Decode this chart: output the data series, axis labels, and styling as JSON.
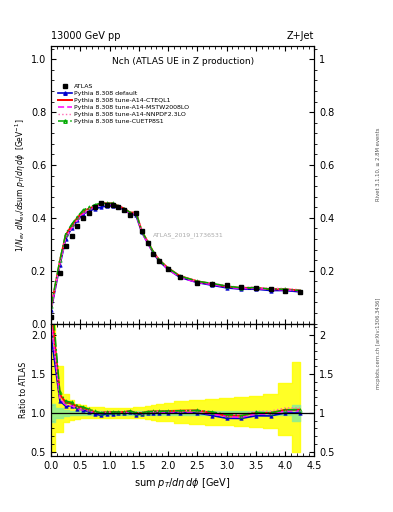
{
  "title_left": "13000 GeV pp",
  "title_right": "Z+Jet",
  "plot_title": "Nch (ATLAS UE in Z production)",
  "xlabel": "sum p$_T$/dη dφ [GeV]",
  "ylabel_main": "1/N$_{ev}$ dN$_{ev}$/dsum p$_T$/dη dφ  [GeV$^{-1}$]",
  "ylabel_ratio": "Ratio to ATLAS",
  "watermark": "ATLAS_2019_I1736531",
  "rivet_text": "Rivet 3.1.10, ≥ 2.8M events",
  "inspire_text": "mcplots.cern.ch [arXiv:1306.3436]",
  "xlim": [
    0.0,
    4.5
  ],
  "ylim_main": [
    0.0,
    1.05
  ],
  "ylim_ratio": [
    0.45,
    2.15
  ],
  "atlas_x": [
    0.0,
    0.15,
    0.25,
    0.35,
    0.45,
    0.55,
    0.65,
    0.75,
    0.85,
    0.95,
    1.05,
    1.15,
    1.25,
    1.35,
    1.45,
    1.55,
    1.65,
    1.75,
    1.85,
    2.0,
    2.2,
    2.5,
    2.75,
    3.0,
    3.25,
    3.5,
    3.75,
    4.0,
    4.25
  ],
  "atlas_y": [
    0.025,
    0.19,
    0.295,
    0.33,
    0.37,
    0.4,
    0.42,
    0.44,
    0.455,
    0.45,
    0.45,
    0.44,
    0.43,
    0.41,
    0.42,
    0.35,
    0.305,
    0.265,
    0.235,
    0.205,
    0.175,
    0.155,
    0.15,
    0.145,
    0.14,
    0.135,
    0.13,
    0.125,
    0.12
  ],
  "atlas_yerr": [
    0.004,
    0.005,
    0.005,
    0.005,
    0.005,
    0.005,
    0.005,
    0.005,
    0.005,
    0.005,
    0.005,
    0.005,
    0.005,
    0.005,
    0.005,
    0.005,
    0.005,
    0.005,
    0.004,
    0.004,
    0.004,
    0.004,
    0.004,
    0.004,
    0.004,
    0.004,
    0.004,
    0.004,
    0.004
  ],
  "default_x": [
    0.0,
    0.15,
    0.25,
    0.35,
    0.45,
    0.55,
    0.65,
    0.75,
    0.85,
    0.95,
    1.05,
    1.15,
    1.25,
    1.35,
    1.45,
    1.55,
    1.65,
    1.75,
    1.85,
    2.0,
    2.2,
    2.5,
    2.75,
    3.0,
    3.25,
    3.5,
    3.75,
    4.0,
    4.25
  ],
  "default_y": [
    0.05,
    0.22,
    0.32,
    0.36,
    0.39,
    0.415,
    0.425,
    0.435,
    0.44,
    0.445,
    0.445,
    0.44,
    0.43,
    0.415,
    0.41,
    0.345,
    0.305,
    0.265,
    0.235,
    0.205,
    0.175,
    0.155,
    0.145,
    0.135,
    0.13,
    0.13,
    0.125,
    0.125,
    0.12
  ],
  "cteql1_x": [
    0.0,
    0.15,
    0.25,
    0.35,
    0.45,
    0.55,
    0.65,
    0.75,
    0.85,
    0.95,
    1.05,
    1.15,
    1.25,
    1.35,
    1.45,
    1.55,
    1.65,
    1.75,
    1.85,
    2.0,
    2.2,
    2.5,
    2.75,
    3.0,
    3.25,
    3.5,
    3.75,
    4.0,
    4.25
  ],
  "cteql1_y": [
    0.06,
    0.235,
    0.335,
    0.37,
    0.4,
    0.425,
    0.435,
    0.445,
    0.455,
    0.455,
    0.455,
    0.445,
    0.435,
    0.42,
    0.42,
    0.35,
    0.31,
    0.27,
    0.24,
    0.21,
    0.18,
    0.16,
    0.15,
    0.14,
    0.135,
    0.135,
    0.13,
    0.13,
    0.125
  ],
  "mstw_x": [
    0.0,
    0.15,
    0.25,
    0.35,
    0.45,
    0.55,
    0.65,
    0.75,
    0.85,
    0.95,
    1.05,
    1.15,
    1.25,
    1.35,
    1.45,
    1.55,
    1.65,
    1.75,
    1.85,
    2.0,
    2.2,
    2.5,
    2.75,
    3.0,
    3.25,
    3.5,
    3.75,
    4.0,
    4.25
  ],
  "mstw_y": [
    0.055,
    0.225,
    0.325,
    0.36,
    0.39,
    0.415,
    0.43,
    0.44,
    0.45,
    0.45,
    0.45,
    0.44,
    0.43,
    0.415,
    0.415,
    0.345,
    0.305,
    0.265,
    0.235,
    0.205,
    0.175,
    0.155,
    0.148,
    0.138,
    0.132,
    0.133,
    0.128,
    0.128,
    0.123
  ],
  "nnpdf_x": [
    0.0,
    0.15,
    0.25,
    0.35,
    0.45,
    0.55,
    0.65,
    0.75,
    0.85,
    0.95,
    1.05,
    1.15,
    1.25,
    1.35,
    1.45,
    1.55,
    1.65,
    1.75,
    1.85,
    2.0,
    2.2,
    2.5,
    2.75,
    3.0,
    3.25,
    3.5,
    3.75,
    4.0,
    4.25
  ],
  "nnpdf_y": [
    0.055,
    0.225,
    0.325,
    0.36,
    0.395,
    0.42,
    0.435,
    0.445,
    0.455,
    0.455,
    0.455,
    0.445,
    0.435,
    0.42,
    0.42,
    0.35,
    0.31,
    0.27,
    0.24,
    0.21,
    0.18,
    0.16,
    0.153,
    0.143,
    0.137,
    0.138,
    0.133,
    0.133,
    0.128
  ],
  "cuetp_x": [
    0.0,
    0.15,
    0.25,
    0.35,
    0.45,
    0.55,
    0.65,
    0.75,
    0.85,
    0.95,
    1.05,
    1.15,
    1.25,
    1.35,
    1.45,
    1.55,
    1.65,
    1.75,
    1.85,
    2.0,
    2.2,
    2.5,
    2.75,
    3.0,
    3.25,
    3.5,
    3.75,
    4.0,
    4.25
  ],
  "cuetp_y": [
    0.065,
    0.24,
    0.34,
    0.375,
    0.405,
    0.43,
    0.44,
    0.45,
    0.455,
    0.455,
    0.455,
    0.445,
    0.435,
    0.42,
    0.42,
    0.35,
    0.31,
    0.27,
    0.24,
    0.21,
    0.18,
    0.16,
    0.152,
    0.142,
    0.135,
    0.136,
    0.13,
    0.13,
    0.125
  ],
  "green_band_lo": [
    0.88,
    0.94,
    0.96,
    0.97,
    0.97,
    0.97,
    0.97,
    0.97,
    0.97,
    0.97,
    0.97,
    0.97,
    0.97,
    0.97,
    0.97,
    0.97,
    0.97,
    0.97,
    0.97,
    0.97,
    0.97,
    0.97,
    0.97,
    0.97,
    0.97,
    0.97,
    0.97,
    0.97,
    0.9
  ],
  "green_band_hi": [
    1.12,
    1.06,
    1.04,
    1.03,
    1.03,
    1.03,
    1.03,
    1.03,
    1.03,
    1.03,
    1.03,
    1.03,
    1.03,
    1.03,
    1.03,
    1.03,
    1.03,
    1.03,
    1.03,
    1.03,
    1.03,
    1.03,
    1.03,
    1.03,
    1.03,
    1.03,
    1.03,
    1.03,
    1.1
  ],
  "yellow_band_lo": [
    0.5,
    0.75,
    0.88,
    0.91,
    0.92,
    0.93,
    0.93,
    0.94,
    0.94,
    0.94,
    0.94,
    0.94,
    0.94,
    0.94,
    0.94,
    0.93,
    0.92,
    0.91,
    0.9,
    0.89,
    0.87,
    0.86,
    0.85,
    0.84,
    0.83,
    0.82,
    0.8,
    0.72,
    0.5
  ],
  "yellow_band_hi": [
    2.5,
    1.6,
    1.25,
    1.16,
    1.12,
    1.1,
    1.08,
    1.07,
    1.07,
    1.06,
    1.06,
    1.06,
    1.06,
    1.06,
    1.07,
    1.08,
    1.09,
    1.1,
    1.11,
    1.13,
    1.15,
    1.17,
    1.18,
    1.19,
    1.2,
    1.22,
    1.25,
    1.38,
    1.65
  ],
  "col_default": "#0000CC",
  "col_cteql1": "#FF0000",
  "col_mstw": "#FF00FF",
  "col_nnpdf": "#FF69B4",
  "col_cuetp": "#00AA00"
}
